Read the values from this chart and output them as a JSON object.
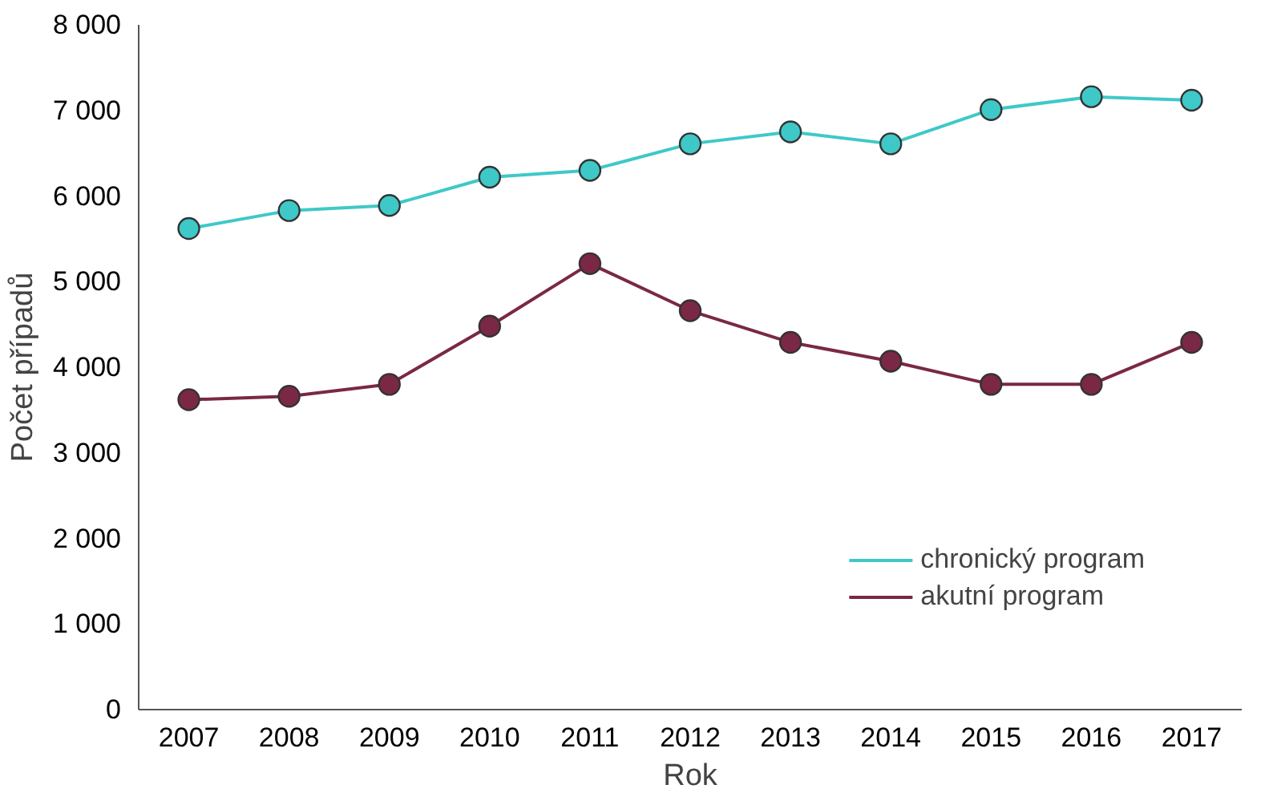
{
  "chart_data": {
    "type": "line",
    "xlabel": "Rok",
    "ylabel": "Počet případů",
    "categories": [
      "2007",
      "2008",
      "2009",
      "2010",
      "2011",
      "2012",
      "2013",
      "2014",
      "2015",
      "2016",
      "2017"
    ],
    "series": [
      {
        "name": "chronický program",
        "color": "#3fc8c8",
        "values": [
          5620,
          5830,
          5890,
          6220,
          6300,
          6610,
          6750,
          6610,
          7010,
          7160,
          7120
        ]
      },
      {
        "name": "akutní program",
        "color": "#7a2846",
        "values": [
          3620,
          3660,
          3800,
          4480,
          5210,
          4660,
          4290,
          4070,
          3800,
          3800,
          4290
        ]
      }
    ],
    "ylim": [
      0,
      8000
    ],
    "yticks": [
      {
        "value": 0,
        "label": "0"
      },
      {
        "value": 1000,
        "label": "1 000"
      },
      {
        "value": 2000,
        "label": "2 000"
      },
      {
        "value": 3000,
        "label": "3 000"
      },
      {
        "value": 4000,
        "label": "4 000"
      },
      {
        "value": 5000,
        "label": "5 000"
      },
      {
        "value": 6000,
        "label": "6 000"
      },
      {
        "value": 7000,
        "label": "7 000"
      },
      {
        "value": 8000,
        "label": "8 000"
      }
    ],
    "grid": false,
    "legend": "bottom right",
    "marker": "circle",
    "line_style": "solid"
  }
}
